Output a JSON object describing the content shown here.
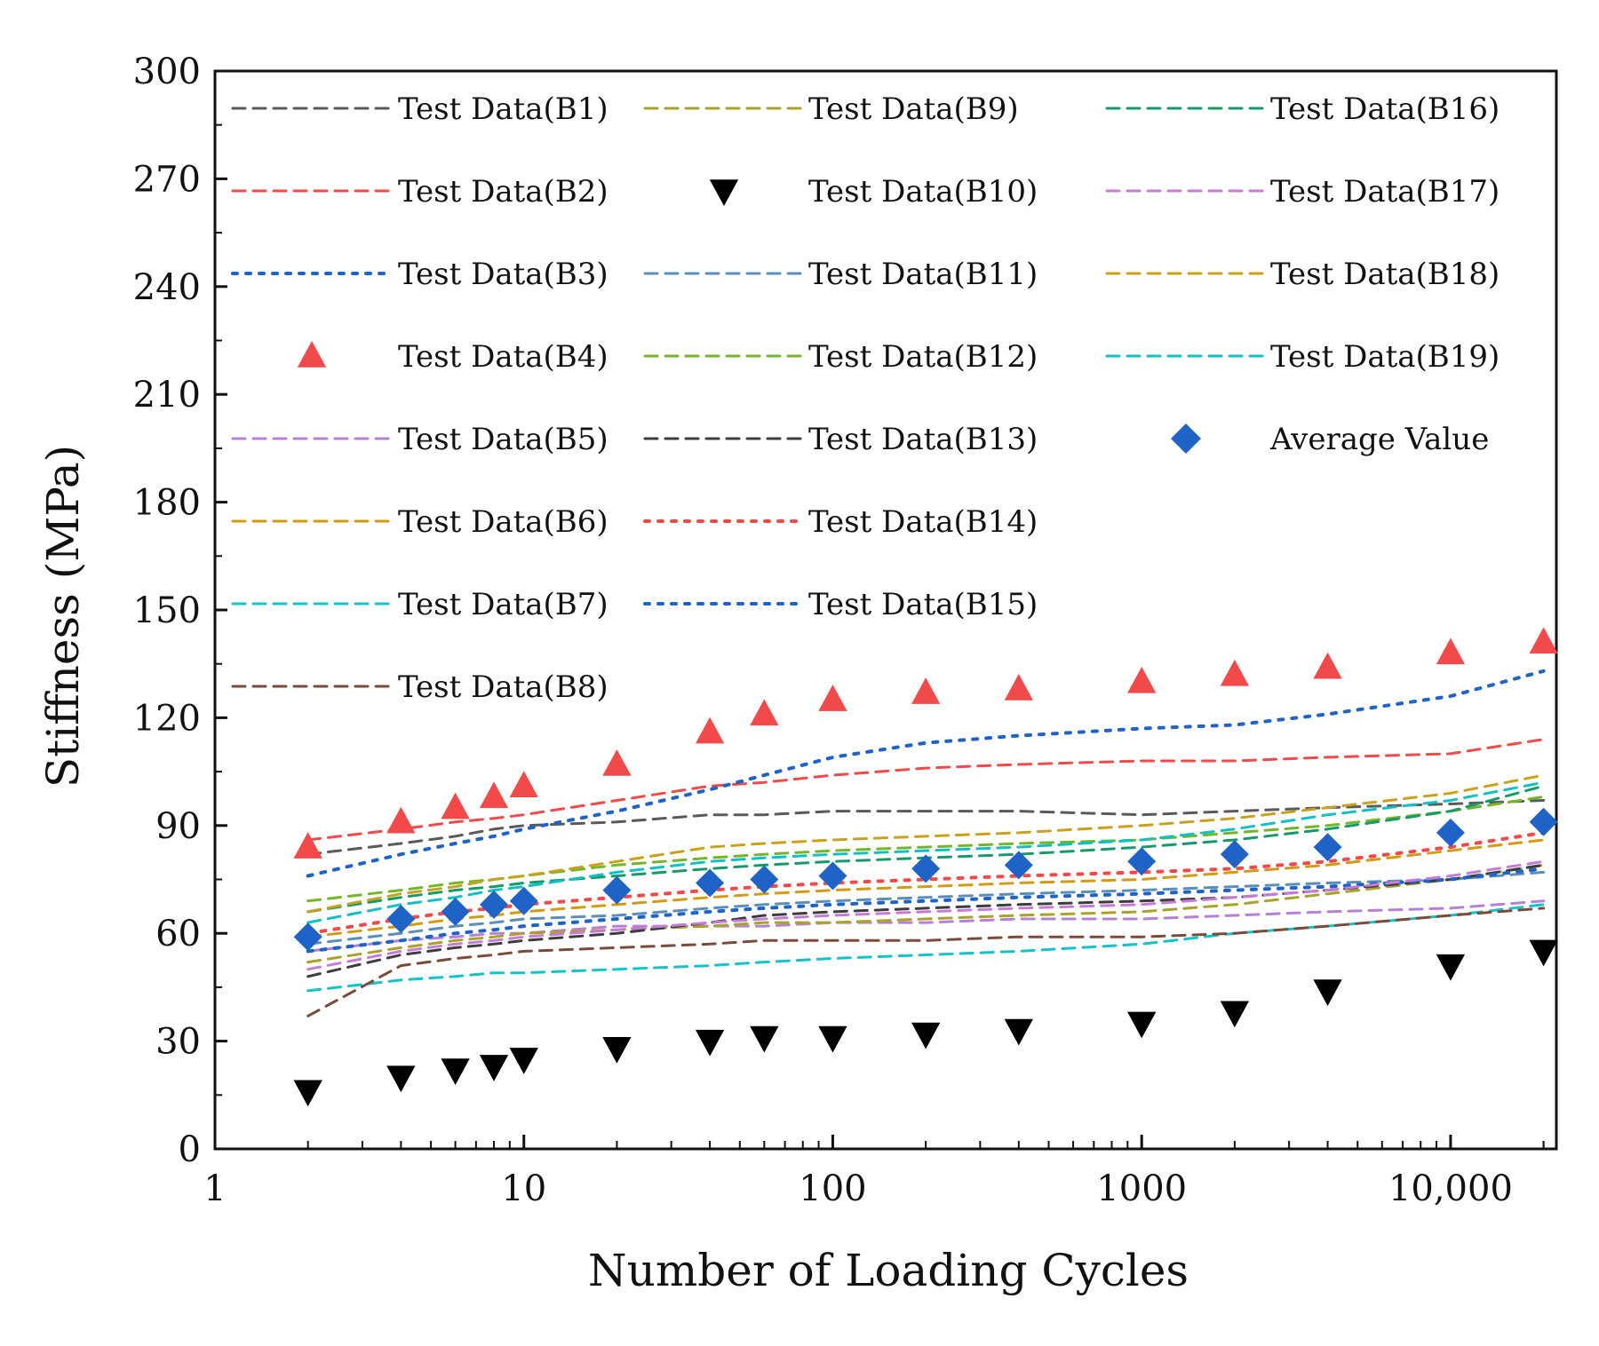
{
  "chart_data": {
    "type": "scatter",
    "title": "",
    "xlabel": "Number of Loading Cycles",
    "ylabel": "Stiffness (MPa)",
    "xscale": "log",
    "xlim": [
      1,
      22000
    ],
    "ylim": [
      0,
      300
    ],
    "grid": false,
    "legend_position": "top-left inside plot, three columns",
    "x_ticks": [
      {
        "value": 1,
        "label": "1"
      },
      {
        "value": 10,
        "label": "10"
      },
      {
        "value": 100,
        "label": "100"
      },
      {
        "value": 1000,
        "label": "1000"
      },
      {
        "value": 10000,
        "label": "10,000"
      }
    ],
    "y_ticks": [
      {
        "value": 0,
        "label": "0"
      },
      {
        "value": 30,
        "label": "30"
      },
      {
        "value": 60,
        "label": "60"
      },
      {
        "value": 90,
        "label": "90"
      },
      {
        "value": 120,
        "label": "120"
      },
      {
        "value": 150,
        "label": "150"
      },
      {
        "value": 180,
        "label": "180"
      },
      {
        "value": 210,
        "label": "210"
      },
      {
        "value": 240,
        "label": "240"
      },
      {
        "value": 270,
        "label": "270"
      },
      {
        "value": 300,
        "label": "300"
      }
    ],
    "x": [
      2,
      4,
      6,
      8,
      10,
      20,
      40,
      60,
      100,
      200,
      400,
      1000,
      2000,
      4000,
      10000,
      20000
    ],
    "series": [
      {
        "name": "Test Data(B1)",
        "style": "dash",
        "color": "#5a5a5a",
        "values": [
          82,
          85,
          87,
          89,
          90,
          91,
          93,
          93,
          94,
          94,
          94,
          93,
          94,
          95,
          96,
          97
        ]
      },
      {
        "name": "Test Data(B2)",
        "style": "dash",
        "color": "#f24a4a",
        "values": [
          86,
          89,
          91,
          92,
          93,
          97,
          101,
          102,
          104,
          106,
          107,
          108,
          108,
          109,
          110,
          114
        ]
      },
      {
        "name": "Test Data(B3)",
        "style": "dot",
        "color": "#1f63c6",
        "values": [
          76,
          82,
          85,
          87,
          89,
          94,
          100,
          104,
          109,
          113,
          115,
          117,
          118,
          121,
          126,
          133
        ]
      },
      {
        "name": "Test Data(B4)",
        "style": "marker-up",
        "color": "#f24a4a",
        "values": [
          84,
          91,
          95,
          98,
          101,
          107,
          116,
          121,
          125,
          127,
          128,
          130,
          132,
          134,
          138,
          141
        ]
      },
      {
        "name": "Test Data(B5)",
        "style": "dash",
        "color": "#b77fd8",
        "values": [
          55,
          58,
          59,
          60,
          60,
          62,
          62,
          62,
          63,
          63,
          64,
          64,
          65,
          66,
          67,
          69
        ]
      },
      {
        "name": "Test Data(B6)",
        "style": "dash",
        "color": "#d49a14",
        "values": [
          59,
          62,
          64,
          65,
          66,
          68,
          70,
          71,
          72,
          73,
          74,
          75,
          77,
          79,
          83,
          86
        ]
      },
      {
        "name": "Test Data(B7)",
        "style": "dash",
        "color": "#14c3c8",
        "values": [
          44,
          47,
          48,
          49,
          49,
          50,
          51,
          52,
          53,
          54,
          55,
          57,
          60,
          62,
          65,
          68
        ]
      },
      {
        "name": "Test Data(B8)",
        "style": "dash",
        "color": "#7a4b3a",
        "values": [
          37,
          51,
          53,
          54,
          55,
          56,
          57,
          58,
          58,
          58,
          59,
          59,
          60,
          62,
          65,
          67
        ]
      },
      {
        "name": "Test Data(B9)",
        "style": "dash",
        "color": "#a8a32a",
        "values": [
          52,
          56,
          58,
          59,
          60,
          61,
          62,
          63,
          63,
          64,
          65,
          66,
          68,
          71,
          75,
          79
        ]
      },
      {
        "name": "Test Data(B10)",
        "style": "marker-down",
        "color": "#000000",
        "values": [
          16,
          20,
          22,
          23,
          25,
          28,
          30,
          31,
          31,
          32,
          33,
          35,
          38,
          44,
          51,
          55
        ]
      },
      {
        "name": "Test Data(B11)",
        "style": "dash",
        "color": "#5b8fb8",
        "values": [
          57,
          60,
          62,
          63,
          64,
          65,
          67,
          68,
          69,
          70,
          71,
          72,
          73,
          74,
          75,
          77
        ]
      },
      {
        "name": "Test Data(B12)",
        "style": "dash",
        "color": "#74b52a",
        "values": [
          69,
          72,
          74,
          75,
          76,
          79,
          81,
          82,
          83,
          84,
          85,
          86,
          88,
          90,
          94,
          98
        ]
      },
      {
        "name": "Test Data(B13)",
        "style": "dash",
        "color": "#3d3d3d",
        "values": [
          48,
          54,
          56,
          57,
          58,
          60,
          63,
          65,
          66,
          67,
          68,
          69,
          70,
          72,
          75,
          79
        ]
      },
      {
        "name": "Test Data(B14)",
        "style": "dot",
        "color": "#f24a4a",
        "values": [
          60,
          64,
          66,
          67,
          68,
          70,
          72,
          73,
          74,
          75,
          76,
          77,
          78,
          80,
          84,
          88
        ]
      },
      {
        "name": "Test Data(B15)",
        "style": "dot",
        "color": "#1f63c6",
        "values": [
          55,
          58,
          60,
          61,
          62,
          64,
          66,
          67,
          68,
          69,
          70,
          71,
          72,
          73,
          75,
          78
        ]
      },
      {
        "name": "Test Data(B16)",
        "style": "dash",
        "color": "#169a68",
        "values": [
          66,
          70,
          72,
          73,
          74,
          76,
          78,
          79,
          80,
          81,
          82,
          84,
          86,
          89,
          94,
          101
        ]
      },
      {
        "name": "Test Data(B17)",
        "style": "dash",
        "color": "#c77bd8",
        "values": [
          50,
          55,
          57,
          58,
          59,
          61,
          63,
          64,
          65,
          66,
          67,
          68,
          70,
          72,
          76,
          80
        ]
      },
      {
        "name": "Test Data(B18)",
        "style": "dash",
        "color": "#c9a21d",
        "values": [
          66,
          71,
          73,
          75,
          76,
          80,
          84,
          85,
          86,
          87,
          88,
          90,
          92,
          95,
          99,
          104
        ]
      },
      {
        "name": "Test Data(B19)",
        "style": "dash",
        "color": "#12bfc5",
        "values": [
          63,
          68,
          70,
          72,
          73,
          77,
          80,
          81,
          82,
          83,
          84,
          86,
          89,
          93,
          97,
          102
        ]
      },
      {
        "name": "Average Value",
        "style": "marker-diamond",
        "color": "#1f63c6",
        "values": [
          59,
          64,
          66,
          68,
          69,
          72,
          74,
          75,
          76,
          78,
          79,
          80,
          82,
          84,
          88,
          91
        ]
      }
    ]
  }
}
